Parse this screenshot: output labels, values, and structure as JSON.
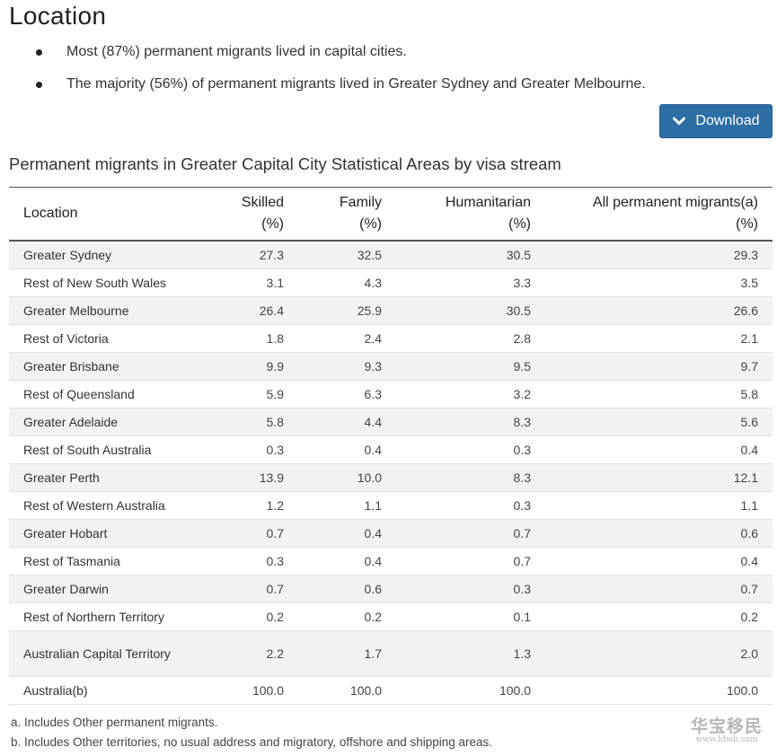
{
  "section": {
    "title": "Location"
  },
  "bullets": [
    "Most (87%) permanent migrants lived in capital cities.",
    "The majority (56%) of permanent migrants lived in Greater Sydney and Greater Melbourne."
  ],
  "download": {
    "label": "Download",
    "icon": "chevron-down-icon"
  },
  "table": {
    "caption": "Permanent migrants in Greater Capital City Statistical Areas by visa stream",
    "headers": [
      {
        "line1": "Location",
        "line2": ""
      },
      {
        "line1": "Skilled",
        "line2": "(%)"
      },
      {
        "line1": "Family",
        "line2": "(%)"
      },
      {
        "line1": "Humanitarian",
        "line2": "(%)"
      },
      {
        "line1": "All permanent migrants(a)",
        "line2": "(%)"
      }
    ],
    "rows": [
      {
        "location": "Greater Sydney",
        "skilled": "27.3",
        "family": "32.5",
        "humanitarian": "30.5",
        "all": "29.3"
      },
      {
        "location": "Rest of New South Wales",
        "skilled": "3.1",
        "family": "4.3",
        "humanitarian": "3.3",
        "all": "3.5"
      },
      {
        "location": "Greater Melbourne",
        "skilled": "26.4",
        "family": "25.9",
        "humanitarian": "30.5",
        "all": "26.6"
      },
      {
        "location": "Rest of Victoria",
        "skilled": "1.8",
        "family": "2.4",
        "humanitarian": "2.8",
        "all": "2.1"
      },
      {
        "location": "Greater Brisbane",
        "skilled": "9.9",
        "family": "9.3",
        "humanitarian": "9.5",
        "all": "9.7"
      },
      {
        "location": "Rest of Queensland",
        "skilled": "5.9",
        "family": "6.3",
        "humanitarian": "3.2",
        "all": "5.8"
      },
      {
        "location": "Greater Adelaide",
        "skilled": "5.8",
        "family": "4.4",
        "humanitarian": "8.3",
        "all": "5.6"
      },
      {
        "location": "Rest of South Australia",
        "skilled": "0.3",
        "family": "0.4",
        "humanitarian": "0.3",
        "all": "0.4"
      },
      {
        "location": "Greater Perth",
        "skilled": "13.9",
        "family": "10.0",
        "humanitarian": "8.3",
        "all": "12.1"
      },
      {
        "location": "Rest of Western Australia",
        "skilled": "1.2",
        "family": "1.1",
        "humanitarian": "0.3",
        "all": "1.1"
      },
      {
        "location": "Greater Hobart",
        "skilled": "0.7",
        "family": "0.4",
        "humanitarian": "0.7",
        "all": "0.6"
      },
      {
        "location": "Rest of Tasmania",
        "skilled": "0.3",
        "family": "0.4",
        "humanitarian": "0.7",
        "all": "0.4"
      },
      {
        "location": "Greater Darwin",
        "skilled": "0.7",
        "family": "0.6",
        "humanitarian": "0.3",
        "all": "0.7"
      },
      {
        "location": "Rest of Northern Territory",
        "skilled": "0.2",
        "family": "0.2",
        "humanitarian": "0.1",
        "all": "0.2"
      },
      {
        "location": "Australian Capital Territory",
        "skilled": "2.2",
        "family": "1.7",
        "humanitarian": "1.3",
        "all": "2.0"
      },
      {
        "location": "Australia(b)",
        "skilled": "100.0",
        "family": "100.0",
        "humanitarian": "100.0",
        "all": "100.0"
      }
    ]
  },
  "footnotes": [
    "a. Includes Other permanent migrants.",
    "b. Includes Other territories, no usual address and migratory, offshore and shipping areas."
  ],
  "watermark": {
    "main": "华宝移民",
    "sub": "www.hbob.com"
  }
}
